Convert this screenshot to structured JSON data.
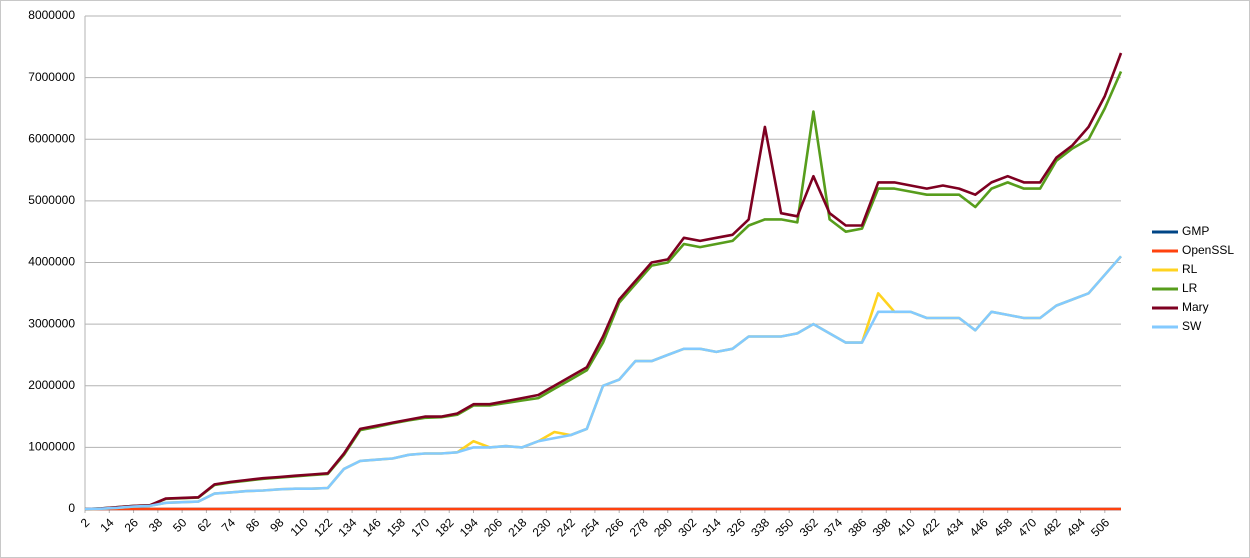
{
  "chart_data": {
    "type": "line",
    "x": [
      2,
      10,
      18,
      26,
      34,
      42,
      50,
      58,
      66,
      74,
      82,
      90,
      98,
      106,
      114,
      122,
      130,
      138,
      146,
      154,
      162,
      170,
      178,
      186,
      194,
      202,
      210,
      218,
      226,
      234,
      242,
      250,
      258,
      266,
      274,
      282,
      290,
      298,
      306,
      314,
      322,
      330,
      338,
      346,
      354,
      362,
      370,
      378,
      386,
      394,
      402,
      410,
      418,
      426,
      434,
      442,
      450,
      458,
      466,
      474,
      482,
      490,
      498,
      506,
      514
    ],
    "xlim": [
      2,
      514
    ],
    "xticks": [
      2,
      14,
      26,
      38,
      50,
      62,
      74,
      86,
      98,
      110,
      122,
      134,
      146,
      158,
      170,
      182,
      194,
      206,
      218,
      230,
      242,
      254,
      266,
      278,
      290,
      302,
      314,
      326,
      338,
      350,
      362,
      374,
      386,
      398,
      410,
      422,
      434,
      446,
      458,
      470,
      482,
      494,
      506
    ],
    "ylim": [
      0,
      8000000
    ],
    "yticks": [
      0,
      1000000,
      2000000,
      3000000,
      4000000,
      5000000,
      6000000,
      7000000,
      8000000
    ],
    "grid": true,
    "legend": "right",
    "series": [
      {
        "name": "GMP",
        "color": "#004586",
        "values": [
          0,
          0,
          0,
          0,
          0,
          0,
          0,
          0,
          0,
          0,
          0,
          0,
          0,
          0,
          0,
          0,
          0,
          0,
          0,
          0,
          0,
          0,
          0,
          0,
          0,
          0,
          0,
          0,
          0,
          0,
          0,
          0,
          0,
          0,
          0,
          0,
          0,
          0,
          0,
          0,
          0,
          0,
          0,
          0,
          0,
          0,
          0,
          0,
          0,
          0,
          0,
          0,
          0,
          0,
          0,
          0,
          0,
          0,
          0,
          0,
          0,
          0,
          0,
          0,
          0
        ]
      },
      {
        "name": "OpenSSL",
        "color": "#ff420e",
        "values": [
          0,
          0,
          0,
          0,
          0,
          0,
          0,
          0,
          0,
          0,
          0,
          0,
          0,
          0,
          0,
          0,
          0,
          0,
          0,
          0,
          0,
          0,
          0,
          0,
          0,
          0,
          0,
          0,
          0,
          0,
          0,
          0,
          0,
          0,
          0,
          0,
          0,
          0,
          0,
          0,
          0,
          0,
          0,
          0,
          0,
          0,
          0,
          0,
          0,
          0,
          0,
          0,
          0,
          0,
          0,
          0,
          0,
          0,
          0,
          0,
          0,
          0,
          0,
          0,
          0
        ]
      },
      {
        "name": "RL",
        "color": "#ffd320",
        "values": [
          0,
          5000,
          20000,
          40000,
          50000,
          100000,
          110000,
          120000,
          250000,
          270000,
          290000,
          300000,
          320000,
          330000,
          330000,
          340000,
          650000,
          780000,
          800000,
          820000,
          880000,
          900000,
          900000,
          920000,
          1100000,
          1000000,
          1020000,
          1000000,
          1100000,
          1250000,
          1200000,
          1300000,
          2000000,
          2100000,
          2400000,
          2400000,
          2500000,
          2600000,
          2600000,
          2550000,
          2600000,
          2800000,
          2800000,
          2800000,
          2850000,
          3000000,
          2850000,
          2700000,
          2700000,
          3500000,
          3200000,
          3200000,
          3100000,
          3100000,
          3100000,
          2900000,
          3200000,
          3150000,
          3100000,
          3100000,
          3300000,
          3400000,
          3500000,
          3800000,
          4100000
        ]
      },
      {
        "name": "LR",
        "color": "#579d1c",
        "values": [
          0,
          10000,
          30000,
          50000,
          60000,
          165000,
          175000,
          185000,
          390000,
          430000,
          460000,
          490000,
          510000,
          530000,
          550000,
          570000,
          880000,
          1280000,
          1330000,
          1390000,
          1440000,
          1480000,
          1490000,
          1530000,
          1680000,
          1680000,
          1720000,
          1760000,
          1800000,
          1950000,
          2100000,
          2250000,
          2700000,
          3350000,
          3650000,
          3950000,
          4000000,
          4300000,
          4250000,
          4300000,
          4350000,
          4600000,
          4700000,
          4700000,
          4650000,
          6450000,
          4700000,
          4500000,
          4550000,
          5200000,
          5200000,
          5150000,
          5100000,
          5100000,
          5100000,
          4900000,
          5200000,
          5300000,
          5200000,
          5200000,
          5650000,
          5850000,
          6000000,
          6500000,
          7100000
        ]
      },
      {
        "name": "Mary",
        "color": "#7e0021",
        "values": [
          0,
          10000,
          30000,
          50000,
          60000,
          170000,
          180000,
          190000,
          400000,
          440000,
          470000,
          500000,
          520000,
          540000,
          560000,
          580000,
          900000,
          1300000,
          1350000,
          1400000,
          1450000,
          1500000,
          1500000,
          1550000,
          1700000,
          1700000,
          1750000,
          1800000,
          1850000,
          2000000,
          2150000,
          2300000,
          2800000,
          3400000,
          3700000,
          4000000,
          4050000,
          4400000,
          4350000,
          4400000,
          4450000,
          4700000,
          6200000,
          4800000,
          4750000,
          5400000,
          4800000,
          4600000,
          4600000,
          5300000,
          5300000,
          5250000,
          5200000,
          5250000,
          5200000,
          5100000,
          5300000,
          5400000,
          5300000,
          5300000,
          5700000,
          5900000,
          6200000,
          6700000,
          7400000
        ]
      },
      {
        "name": "SW",
        "color": "#83caff",
        "values": [
          0,
          5000,
          20000,
          40000,
          50000,
          100000,
          110000,
          120000,
          250000,
          270000,
          290000,
          300000,
          320000,
          330000,
          330000,
          340000,
          650000,
          780000,
          800000,
          820000,
          880000,
          900000,
          900000,
          920000,
          1000000,
          1000000,
          1020000,
          1000000,
          1100000,
          1150000,
          1200000,
          1300000,
          2000000,
          2100000,
          2400000,
          2400000,
          2500000,
          2600000,
          2600000,
          2550000,
          2600000,
          2800000,
          2800000,
          2800000,
          2850000,
          3000000,
          2850000,
          2700000,
          2700000,
          3200000,
          3200000,
          3200000,
          3100000,
          3100000,
          3100000,
          2900000,
          3200000,
          3150000,
          3100000,
          3100000,
          3300000,
          3400000,
          3500000,
          3800000,
          4100000
        ]
      }
    ]
  }
}
